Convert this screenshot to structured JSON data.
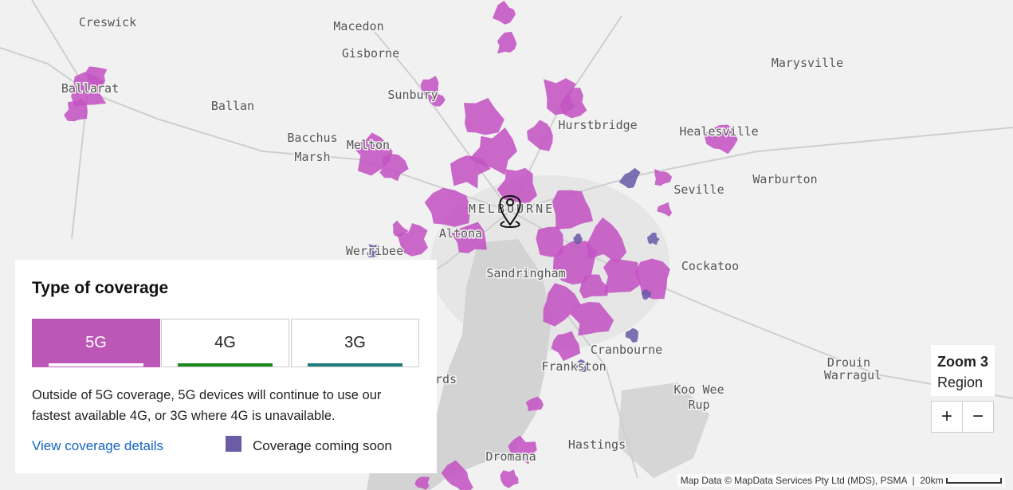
{
  "map": {
    "places": [
      "Creswick",
      "Macedon",
      "Gisborne",
      "Ballarat",
      "Ballan",
      "Sunbury",
      "Melton",
      "Marysville",
      "Hurstbridge",
      "Healesville",
      "Seville",
      "Warburton",
      "MELBOURNE",
      "Altona",
      "Werribee",
      "Sandringham",
      "Cockatoo",
      "Cranbourne",
      "Frankston",
      "Drouin",
      "Warragul",
      "Hastings",
      "Dromana",
      "ards"
    ],
    "multiline_places": [
      [
        "Bacchus",
        "Marsh"
      ],
      [
        "Koo Wee",
        "Rup"
      ]
    ],
    "attribution": "Map Data © MapData Services Pty Ltd (MDS), PSMA",
    "scale": "20km"
  },
  "legend": {
    "title": "Type of coverage",
    "tabs": [
      "5G",
      "4G",
      "3G"
    ],
    "description": "Outside of 5G coverage, 5G devices will continue to use our fastest available 4G, or 3G where 4G is unavailable.",
    "link": "View coverage details",
    "coming_soon": "Coverage coming soon"
  },
  "zoom": {
    "level": "Zoom 3",
    "label": "Region",
    "zoom_in": "+",
    "zoom_out": "−"
  }
}
